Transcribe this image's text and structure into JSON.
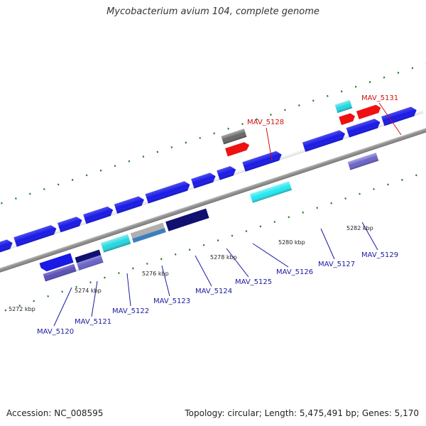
{
  "title": "Mycobacterium avium 104, complete genome",
  "footer": {
    "accession": "Accession: NC_008595",
    "stats": "Topology: circular; Length: 5,475,491 bp; Genes: 5,170"
  },
  "colors": {
    "backbone": "#888888",
    "tick": "#1e7d1e",
    "cds_blue": "#1a1ae6",
    "cds_cyan": "#22d8e0",
    "cds_navy": "#101070",
    "cds_slate": "#6a62c8",
    "cds_gray": "#666666",
    "cds_red": "#ee1111",
    "label_blue": "#1a1aa0",
    "label_red": "#cc1111"
  },
  "kbp_labels": [
    "5272 kbp",
    "5274 kbp",
    "5276 kbp",
    "5278 kbp",
    "5280 kbp",
    "5282 kbp"
  ],
  "gene_labels": {
    "mav5120": "MAV_5120",
    "mav5121": "MAV_5121",
    "mav5122": "MAV_5122",
    "mav5123": "MAV_5123",
    "mav5124": "MAV_5124",
    "mav5125": "MAV_5125",
    "mav5126": "MAV_5126",
    "mav5127": "MAV_5127",
    "mav5128": "MAV_5128",
    "mav5129": "MAV_5129",
    "mav5131": "MAV_5131"
  }
}
